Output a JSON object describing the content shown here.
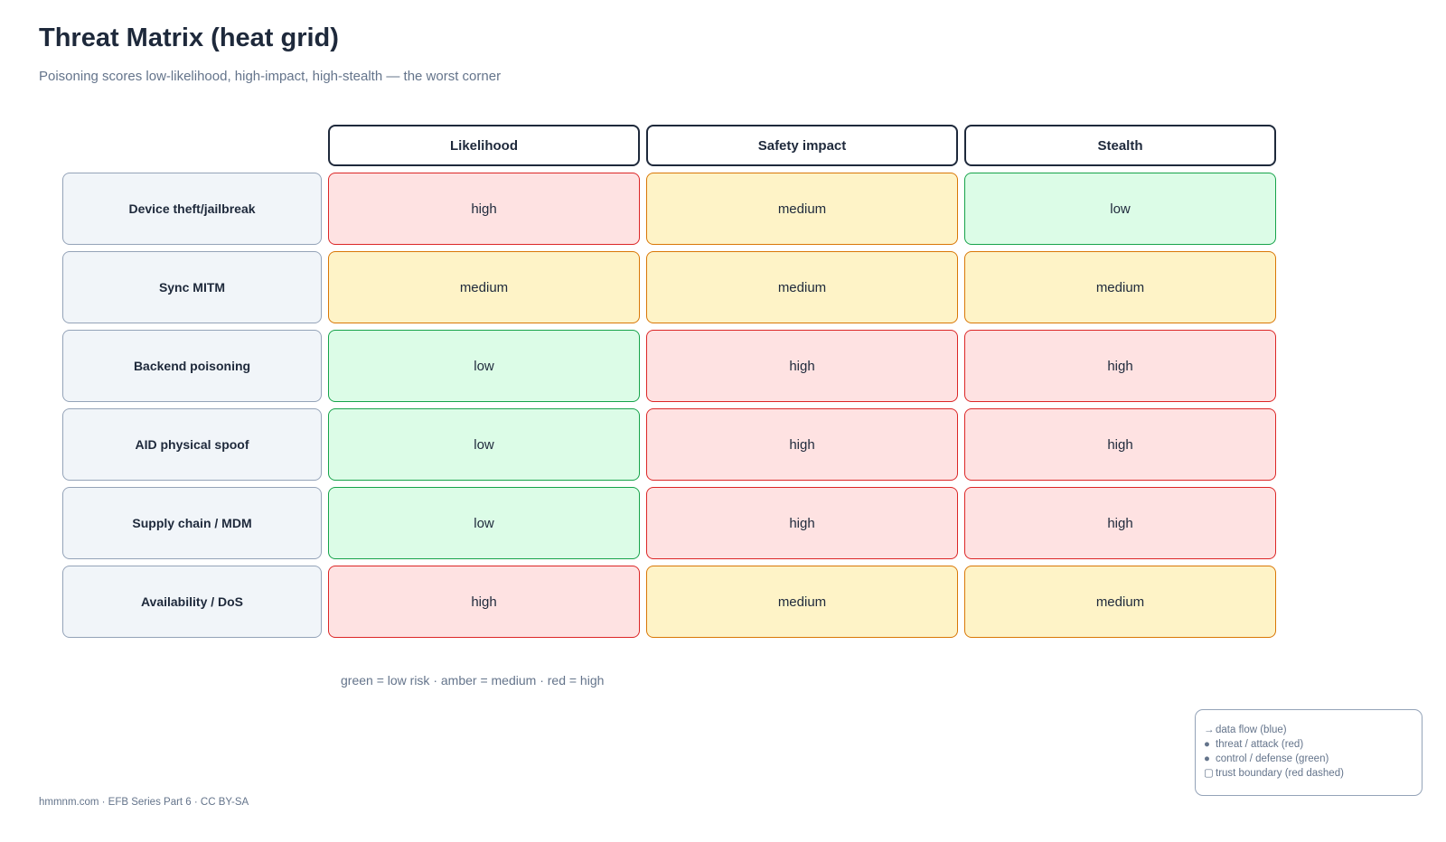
{
  "header": {
    "title": "Threat Matrix (heat grid)",
    "subtitle": "Poisoning scores low-likelihood, high-impact, high-stealth — the worst corner"
  },
  "matrix": {
    "columns": [
      "Likelihood",
      "Safety impact",
      "Stealth"
    ],
    "rows": [
      {
        "label": "Device theft/jailbreak",
        "values": [
          "high",
          "medium",
          "low"
        ]
      },
      {
        "label": "Sync MITM",
        "values": [
          "medium",
          "medium",
          "medium"
        ]
      },
      {
        "label": "Backend poisoning",
        "values": [
          "low",
          "high",
          "high"
        ]
      },
      {
        "label": "AID physical spoof",
        "values": [
          "low",
          "high",
          "high"
        ]
      },
      {
        "label": "Supply chain / MDM",
        "values": [
          "low",
          "high",
          "high"
        ]
      },
      {
        "label": "Availability / DoS",
        "values": [
          "high",
          "medium",
          "medium"
        ]
      }
    ],
    "level_colors": {
      "low": {
        "fill": "#dcfce7",
        "stroke": "#16a34a"
      },
      "medium": {
        "fill": "#fef3c7",
        "stroke": "#d97706"
      },
      "high": {
        "fill": "#fee2e2",
        "stroke": "#dc2626"
      }
    }
  },
  "caption": "green = low risk · amber = medium · red = high",
  "legend": {
    "items": [
      {
        "symbol": "→",
        "text": "data flow (blue)"
      },
      {
        "symbol": "●",
        "text": "threat / attack (red)"
      },
      {
        "symbol": "●",
        "text": "control / defense (green)"
      },
      {
        "symbol": "▢",
        "text": "trust boundary (red dashed)"
      }
    ]
  },
  "footer": "hmmnm.com · EFB Series Part 6 · CC BY-SA"
}
